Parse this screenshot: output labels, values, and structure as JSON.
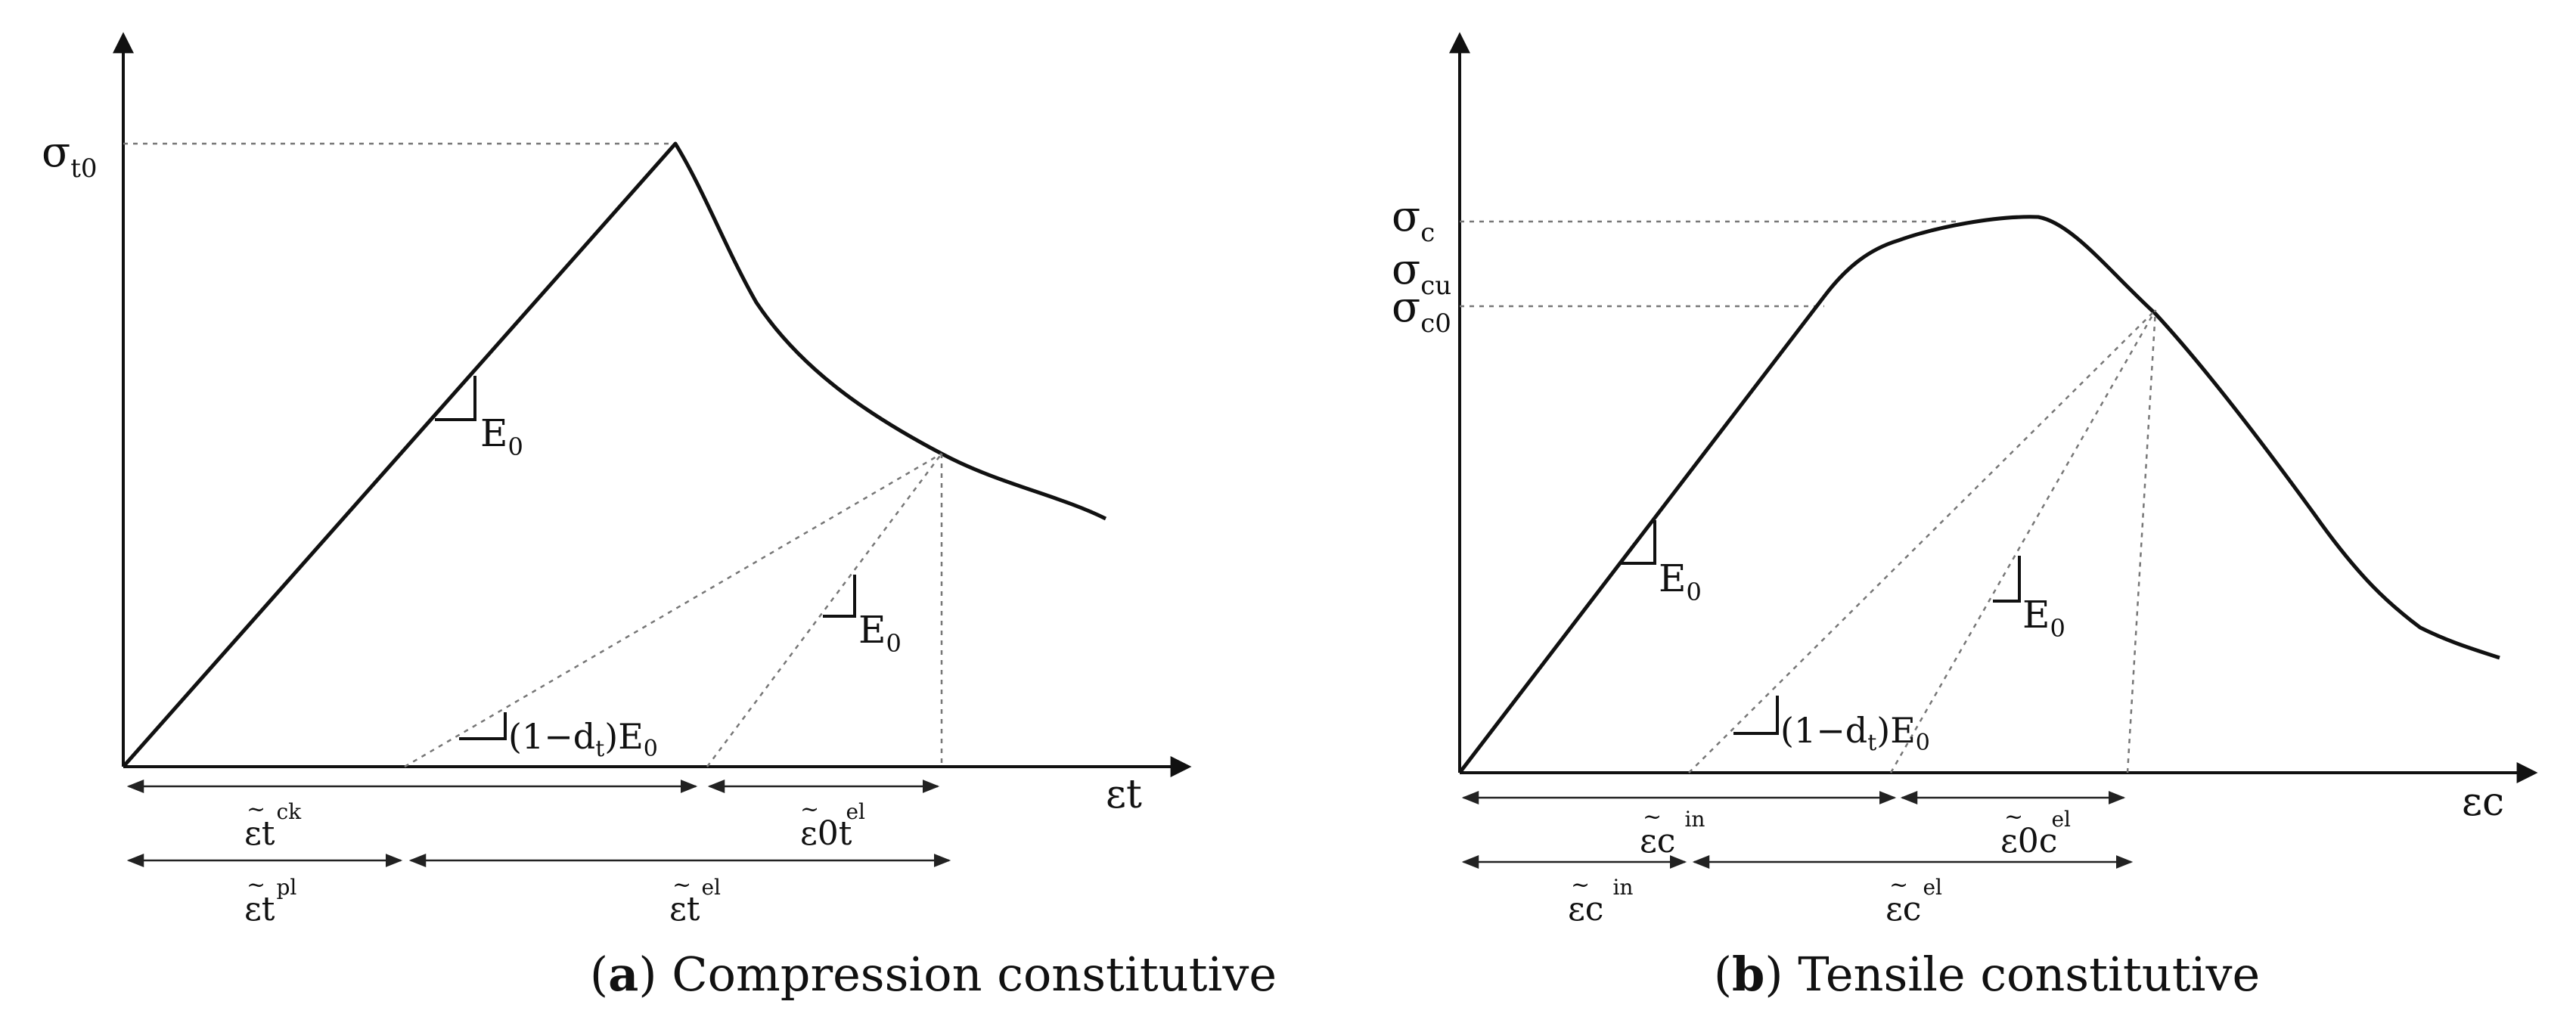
{
  "panel_a": {
    "caption_letter": "a",
    "caption_text": " Compression constitutive",
    "y_peak_main": "σ",
    "y_peak_sub": "t0",
    "x_axis": "εt",
    "slope_e0_upper": "E",
    "slope_e0_upper_sub": "0",
    "slope_e0_lower": "E",
    "slope_e0_lower_sub": "0",
    "slope_damage_pre": "(1−d",
    "slope_damage_sub": "t",
    "slope_damage_post": ")E",
    "slope_damage_sub2": "0",
    "dim_ck_main": "εt",
    "dim_ck_sup": "ck",
    "dim_el0_main": "ε0t",
    "dim_el0_sup": "el",
    "dim_pl_main": "εt",
    "dim_pl_sup": "pl",
    "dim_el_main": "εt",
    "dim_el_sup": "el",
    "tilde": "~"
  },
  "panel_b": {
    "caption_letter": "b",
    "caption_text": " Tensile constitutive",
    "y_c_main": "σ",
    "y_c_sub": "c",
    "y_cu_main": "σ",
    "y_cu_sub": "cu",
    "y_c0_main": "σ",
    "y_c0_sub": "c0",
    "x_axis": "εc",
    "slope_e0_left": "E",
    "slope_e0_left_sub": "0",
    "slope_e0_right": "E",
    "slope_e0_right_sub": "0",
    "slope_damage_pre": "(1−d",
    "slope_damage_sub": "t",
    "slope_damage_post": ")E",
    "slope_damage_sub2": "0",
    "dim_in_main": "εc",
    "dim_in_sup": "in",
    "dim_el0_main": "ε0c",
    "dim_el0_sup": "el",
    "dim_in2_main": "εc",
    "dim_in2_sup": "in",
    "dim_el_main": "εc",
    "dim_el_sup": "el",
    "tilde": "~"
  }
}
